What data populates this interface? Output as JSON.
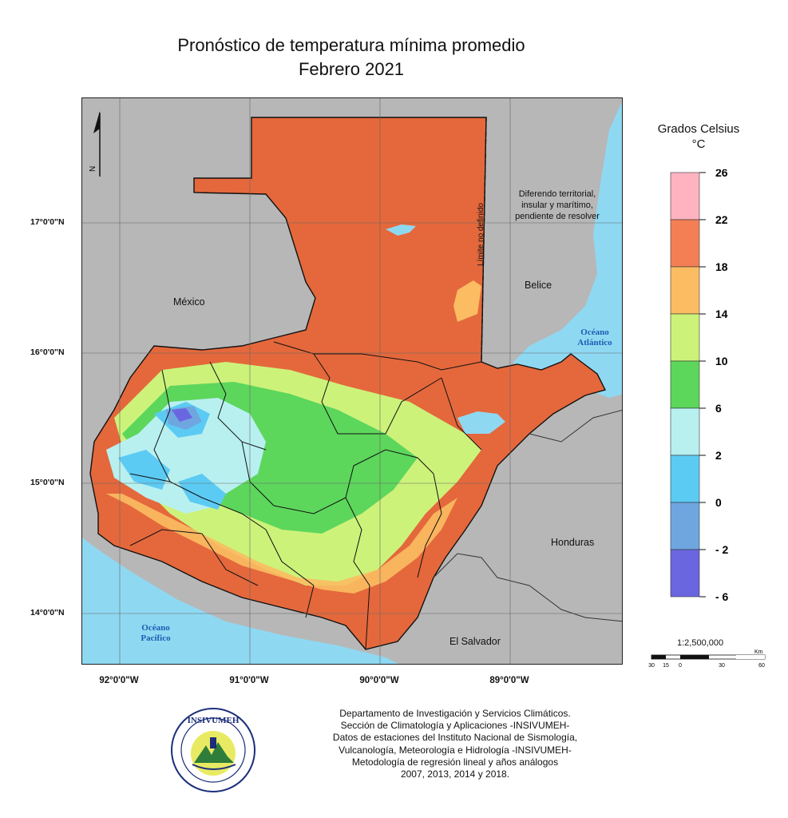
{
  "title": {
    "line1": "Pronóstico de temperatura mínima promedio",
    "line2": "Febrero 2021"
  },
  "map": {
    "north_label": "N",
    "latitudes": [
      {
        "label": "17°0'0\"N",
        "value": 17
      },
      {
        "label": "16°0'0\"N",
        "value": 16
      },
      {
        "label": "15°0'0\"N",
        "value": 15
      },
      {
        "label": "14°0'0\"N",
        "value": 14
      }
    ],
    "longitudes": [
      {
        "label": "92°0'0\"W",
        "value": -92
      },
      {
        "label": "91°0'0\"W",
        "value": -91
      },
      {
        "label": "90°0'0\"W",
        "value": -90
      },
      {
        "label": "89°0'0\"W",
        "value": -89
      }
    ],
    "countries": {
      "mexico": "México",
      "belice": "Belice",
      "honduras": "Honduras",
      "el_salvador": "El Salvador"
    },
    "oceans": {
      "atlantico_1": "Océano",
      "atlantico_2": "Atlántico",
      "pacifico_1": "Océano",
      "pacifico_2": "Pacífico"
    },
    "notes": {
      "limite": "Límite no definido",
      "diferendo_1": "Diferendo territorial,",
      "diferendo_2": "insular y marítimo,",
      "diferendo_3": "pendiente de resolver"
    },
    "colors": {
      "background_countries": "#b7b7b7",
      "ocean": "#8fd8f2",
      "very_warm": "#e4683c"
    }
  },
  "legend": {
    "title_1": "Grados Celsius",
    "title_2": "°C",
    "classes": [
      {
        "range": "22 - 26",
        "color": "#ffb3c1"
      },
      {
        "range": "18 - 22",
        "color": "#f47f55"
      },
      {
        "range": "14 - 18",
        "color": "#fbbc62"
      },
      {
        "range": "10 - 14",
        "color": "#cdf27a"
      },
      {
        "range": "6 - 10",
        "color": "#5dd65c"
      },
      {
        "range": "2 - 6",
        "color": "#b8f0f0"
      },
      {
        "range": "0 - 2",
        "color": "#5ccbf4"
      },
      {
        "range": "-2 - 0",
        "color": "#6fa6e0"
      },
      {
        "range": "-6 - -2",
        "color": "#6a66e0"
      }
    ],
    "ticks": [
      "26",
      "22",
      "18",
      "14",
      "10",
      "6",
      "2",
      "0",
      "- 2",
      "- 6"
    ]
  },
  "scale": {
    "ratio": "1:2,500,000",
    "unit": "Km",
    "ticks": [
      "30",
      "15",
      "0",
      "30",
      "60"
    ]
  },
  "logo": {
    "text": "INSIVUMEH",
    "ring_text": "Ministerio de Comunicaciones, Infraestructura y Vivienda"
  },
  "credits": [
    "Departamento de Investigación y Servicios Climáticos.",
    "Sección de Climatología y Aplicaciones -INSIVUMEH-",
    "Datos de estaciones del Instituto Nacional de Sismología,",
    "Vulcanología, Meteorología e Hidrología -INSIVUMEH-",
    "Metodología de regresión lineal y años análogos",
    "2007, 2013, 2014  y 2018."
  ]
}
